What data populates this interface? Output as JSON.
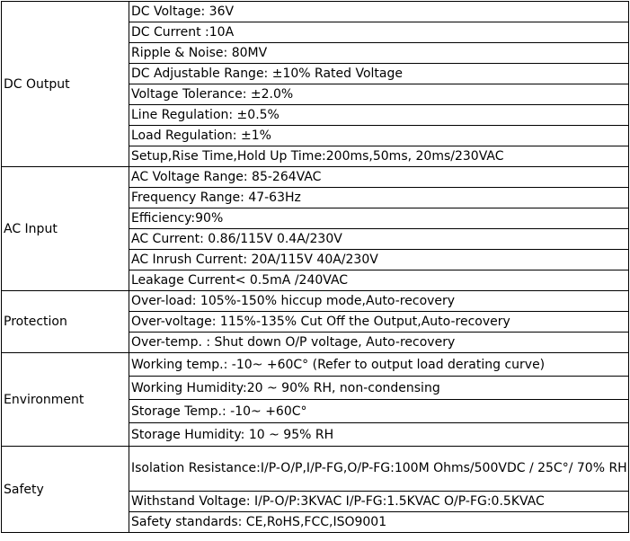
{
  "sections": [
    {
      "label": "DC Output",
      "rows": [
        "DC Voltage: 36V",
        "DC Current :10A",
        "Ripple & Noise: 80MV",
        "DC Adjustable Range: ±10% Rated Voltage",
        "Voltage Tolerance: ±2.0%",
        "Line Regulation: ±0.5%",
        "Load Regulation: ±1%",
        "Setup,Rise Time,Hold Up Time:200ms,50ms, 20ms/230VAC"
      ]
    },
    {
      "label": "AC Input",
      "rows": [
        "AC Voltage Range: 85-264VAC",
        "Frequency Range: 47-63Hz",
        "Efficiency:90%",
        "AC Current: 0.86/115V  0.4A/230V",
        "AC Inrush Current: 20A/115V   40A/230V",
        "Leakage Current< 0.5mA /240VAC"
      ]
    },
    {
      "label": "Protection",
      "rows": [
        "Over-load: 105%-150% hiccup mode,Auto-recovery",
        "Over-voltage: 115%-135% Cut Off the Output,Auto-recovery",
        "Over-temp. : Shut down O/P voltage, Auto-recovery"
      ]
    },
    {
      "label": "Environment",
      "rows": [
        "Working temp.: -10~ +60C°  (Refer to output load derating curve)",
        "Working Humidity:20 ~ 90% RH, non-condensing",
        "Storage Temp.: -10~ +60C°",
        "Storage Humidity: 10 ~ 95% RH"
      ]
    },
    {
      "label": "Safety",
      "rows": [
        "Isolation Resistance:I/P-O/P,I/P-FG,O/P-FG:100M Ohms/500VDC / 25C°/ 70% RH",
        "Withstand Voltage: I/P-O/P:3KVAC I/P-FG:1.5KVAC O/P-FG:0.5KVAC",
        "Safety standards: CE,RoHS,FCC,ISO9001"
      ]
    }
  ]
}
